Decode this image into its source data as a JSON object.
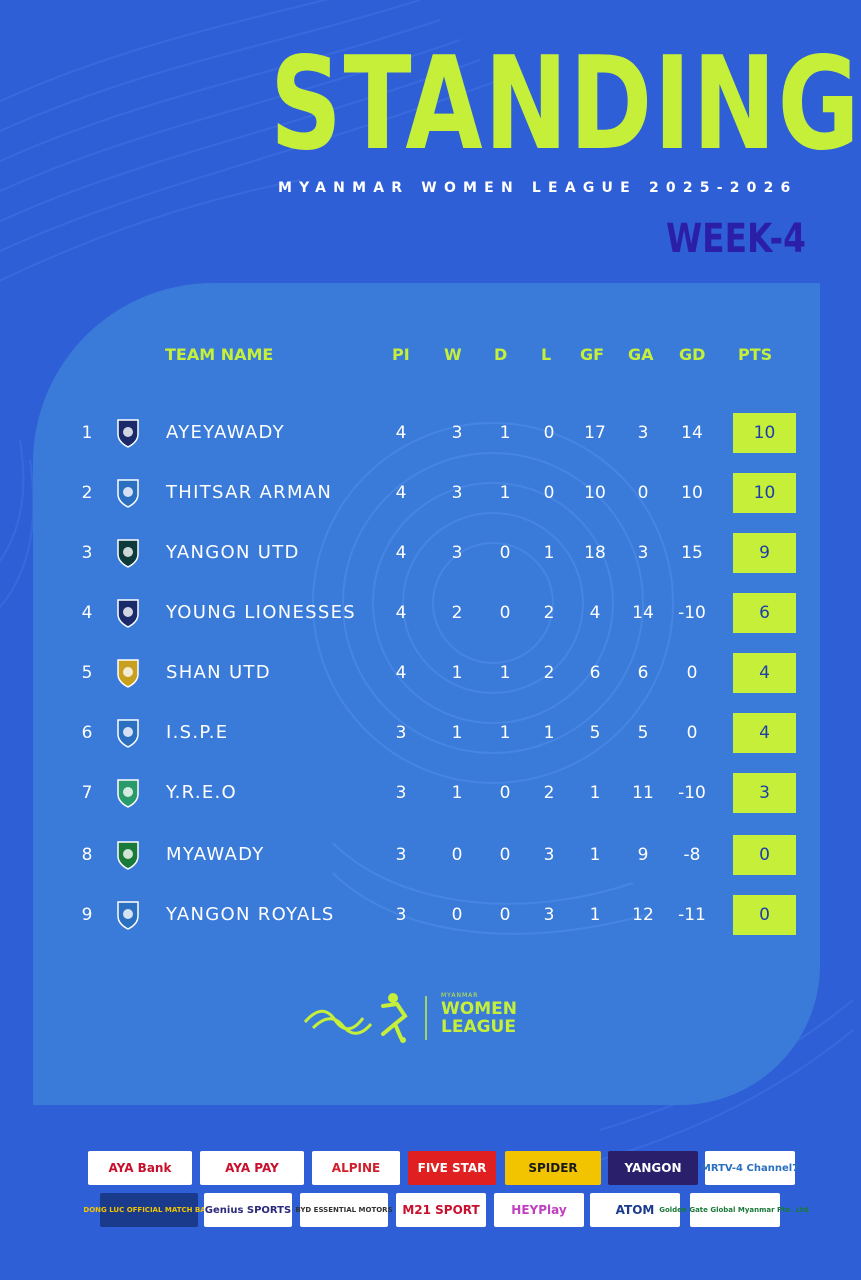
{
  "header": {
    "title": "STANDING",
    "subtitle": "MYANMAR WOMEN LEAGUE 2025-2026",
    "week": "WEEK-4"
  },
  "columns": [
    "TEAM NAME",
    "PI",
    "W",
    "D",
    "L",
    "GF",
    "GA",
    "GD",
    "PTS"
  ],
  "teams": [
    {
      "rank": "1",
      "name": "AYEYAWADY",
      "pl": "4",
      "w": "3",
      "d": "1",
      "l": "0",
      "gf": "17",
      "ga": "3",
      "gd": "14",
      "pts": "10"
    },
    {
      "rank": "2",
      "name": "THITSAR ARMAN",
      "pl": "4",
      "w": "3",
      "d": "1",
      "l": "0",
      "gf": "10",
      "ga": "0",
      "gd": "10",
      "pts": "10"
    },
    {
      "rank": "3",
      "name": "YANGON UTD",
      "pl": "4",
      "w": "3",
      "d": "0",
      "l": "1",
      "gf": "18",
      "ga": "3",
      "gd": "15",
      "pts": "9"
    },
    {
      "rank": "4",
      "name": "YOUNG LIONESSES",
      "pl": "4",
      "w": "2",
      "d": "0",
      "l": "2",
      "gf": "4",
      "ga": "14",
      "gd": "-10",
      "pts": "6"
    },
    {
      "rank": "5",
      "name": "SHAN UTD",
      "pl": "4",
      "w": "1",
      "d": "1",
      "l": "2",
      "gf": "6",
      "ga": "6",
      "gd": "0",
      "pts": "4"
    },
    {
      "rank": "6",
      "name": "I.S.P.E",
      "pl": "3",
      "w": "1",
      "d": "1",
      "l": "1",
      "gf": "5",
      "ga": "5",
      "gd": "0",
      "pts": "4"
    },
    {
      "rank": "7",
      "name": "Y.R.E.O",
      "pl": "3",
      "w": "1",
      "d": "0",
      "l": "2",
      "gf": "1",
      "ga": "11",
      "gd": "-10",
      "pts": "3"
    },
    {
      "rank": "8",
      "name": "MYAWADY",
      "pl": "3",
      "w": "0",
      "d": "0",
      "l": "3",
      "gf": "1",
      "ga": "9",
      "gd": "-8",
      "pts": "0"
    },
    {
      "rank": "9",
      "name": "YANGON ROYALS",
      "pl": "3",
      "w": "0",
      "d": "0",
      "l": "3",
      "gf": "1",
      "ga": "12",
      "gd": "-11",
      "pts": "0"
    }
  ],
  "league_logo": {
    "small": "MYANMAR",
    "line1": "WOMEN",
    "line2": "LEAGUE"
  },
  "sponsors": [
    {
      "label": "AYA Bank",
      "color": "#c8102e"
    },
    {
      "label": "AYA PAY",
      "color": "#c8102e"
    },
    {
      "label": "ALPINE",
      "color": "#d0202a"
    },
    {
      "label": "FIVE STAR",
      "color": "#ffffff",
      "bg": "#e02020"
    },
    {
      "label": "SPIDER",
      "color": "#1a1a1a",
      "bg": "#f2c400"
    },
    {
      "label": "YANGON",
      "color": "#ffffff",
      "bg": "#2a1f6a"
    },
    {
      "label": "MRTV-4 Channel7",
      "color": "#2a6fc0"
    },
    {
      "label": "DONG LUC OFFICIAL MATCH BALL",
      "color": "#f2c400",
      "bg": "#1a3a8c"
    },
    {
      "label": "Genius SPORTS",
      "color": "#2a2a7a"
    },
    {
      "label": "BYD ESSENTIAL MOTORS",
      "color": "#333333"
    },
    {
      "label": "M21 SPORT",
      "color": "#c8102e"
    },
    {
      "label": "HEYPlay",
      "color": "#c040c0"
    },
    {
      "label": "ATOM",
      "color": "#1a3a8c"
    },
    {
      "label": "Golden Gate Global Myanmar Pte. Ltd.",
      "color": "#1a7a3a"
    }
  ],
  "colors": {
    "accent": "#c6ef3a",
    "background": "#2e5fd6",
    "panel": "#3a7bd9",
    "week": "#2b1fa8"
  }
}
